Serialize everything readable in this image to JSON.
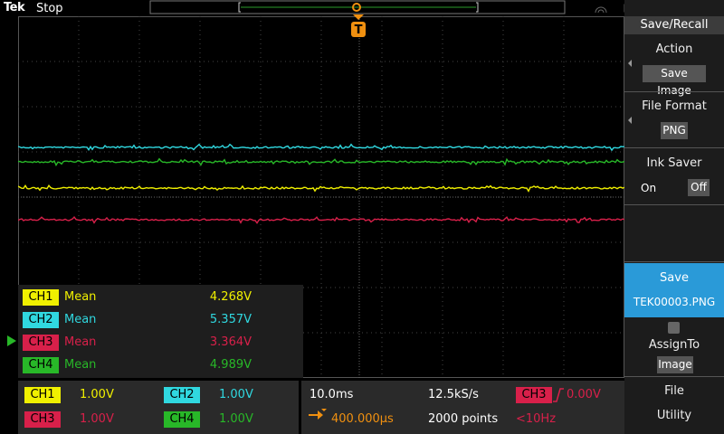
{
  "header": {
    "brand": "Tek",
    "status": "Stop"
  },
  "trigger_marker": "T",
  "measurements": [
    {
      "channel": "CH1",
      "label": "Mean",
      "value": "4.268V"
    },
    {
      "channel": "CH2",
      "label": "Mean",
      "value": "5.357V"
    },
    {
      "channel": "CH3",
      "label": "Mean",
      "value": "3.364V"
    },
    {
      "channel": "CH4",
      "label": "Mean",
      "value": "4.989V"
    }
  ],
  "channels": [
    {
      "name": "CH1",
      "scale": "1.00V"
    },
    {
      "name": "CH2",
      "scale": "1.00V"
    },
    {
      "name": "CH3",
      "scale": "1.00V"
    },
    {
      "name": "CH4",
      "scale": "1.00V"
    }
  ],
  "horizontal": {
    "scale": "10.0ms",
    "sample_rate": "12.5kS/s",
    "position": "400.000µs",
    "record_length": "2000 points"
  },
  "trigger": {
    "source": "CH3",
    "level": "0.00V",
    "frequency": "<10Hz"
  },
  "menu": {
    "title": "Save/Recall",
    "action": {
      "label": "Action",
      "value": "Save Image"
    },
    "file_format": {
      "label": "File Format",
      "value": "PNG"
    },
    "ink_saver": {
      "label": "Ink Saver",
      "on": "On",
      "off": "Off"
    },
    "save": {
      "label": "Save",
      "value": "TEK00003.PNG"
    },
    "assign_to": {
      "label": "AssignTo",
      "value": "Image"
    },
    "file_utility": {
      "label": "File",
      "value": "Utility"
    }
  }
}
